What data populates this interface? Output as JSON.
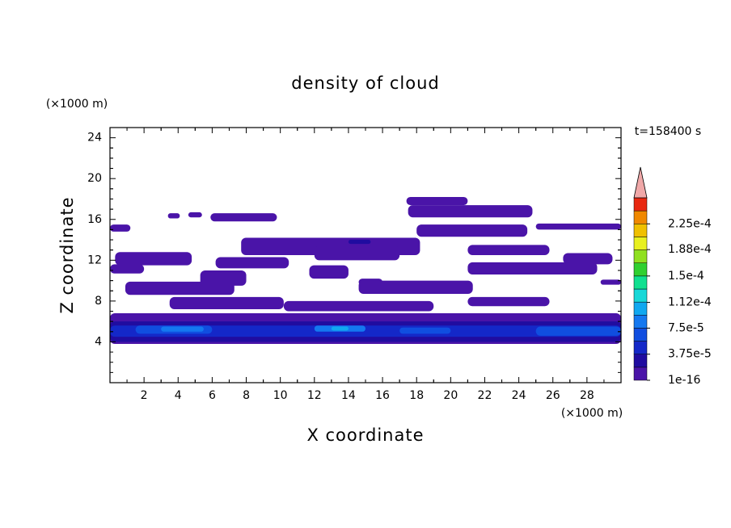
{
  "chart_data": {
    "type": "contour",
    "title": "density of cloud",
    "xlabel": "X coordinate",
    "ylabel": "Z coordinate",
    "xunit": "(×1000 m)",
    "yunit": "(×1000 m)",
    "annotation": "t=158400 s",
    "xlim": [
      0,
      30
    ],
    "ylim": [
      0,
      25
    ],
    "xticks": [
      2,
      4,
      6,
      8,
      10,
      12,
      14,
      16,
      18,
      20,
      22,
      24,
      26,
      28
    ],
    "yticks": [
      4,
      8,
      12,
      16,
      20,
      24
    ],
    "colorbar": {
      "colors": [
        "#4a14a8",
        "#200ca0",
        "#1428c8",
        "#104ee0",
        "#1478f0",
        "#10a8f0",
        "#18d8d8",
        "#10e090",
        "#30d030",
        "#90e020",
        "#e8f020",
        "#f0c000",
        "#f08800",
        "#e82810"
      ],
      "over_color": "#f0a8a8",
      "ticks": [
        1e-16,
        {
          "value": 3.75e-05,
          "label": "3.75e-5"
        },
        {
          "value": 7.5e-05,
          "label": "7.5e-5"
        },
        {
          "value": 0.000112,
          "label": "1.12e-4"
        },
        {
          "value": 0.00015,
          "label": "1.5e-4"
        },
        {
          "value": 0.000188,
          "label": "1.88e-4"
        },
        {
          "value": 0.000225,
          "label": "2.25e-4"
        }
      ]
    },
    "regions": [
      {
        "x": [
          0,
          30
        ],
        "z": [
          3.8,
          6.8
        ],
        "value": 5e-06
      },
      {
        "x": [
          0,
          1.2
        ],
        "z": [
          14.8,
          15.5
        ],
        "value": 5e-06
      },
      {
        "x": [
          0.3,
          4.8
        ],
        "z": [
          11.5,
          12.8
        ],
        "value": 5e-06
      },
      {
        "x": [
          0,
          2
        ],
        "z": [
          10.7,
          11.6
        ],
        "value": 5e-06
      },
      {
        "x": [
          5.9,
          9.8
        ],
        "z": [
          15.8,
          16.6
        ],
        "value": 5e-06
      },
      {
        "x": [
          3.4,
          4.1
        ],
        "z": [
          16.1,
          16.6
        ],
        "value": 5e-06
      },
      {
        "x": [
          4.6,
          5.4
        ],
        "z": [
          16.2,
          16.7
        ],
        "value": 5e-06
      },
      {
        "x": [
          17.4,
          21
        ],
        "z": [
          17.4,
          18.2
        ],
        "value": 5e-06
      },
      {
        "x": [
          17.5,
          24.8
        ],
        "z": [
          16.2,
          17.4
        ],
        "value": 5e-06
      },
      {
        "x": [
          18,
          24.5
        ],
        "z": [
          14.3,
          15.5
        ],
        "value": 5e-06
      },
      {
        "x": [
          25,
          30
        ],
        "z": [
          15,
          15.6
        ],
        "value": 5e-06
      },
      {
        "x": [
          7.7,
          18.2
        ],
        "z": [
          12.5,
          14.2
        ],
        "value": 5e-06
      },
      {
        "x": [
          12,
          17
        ],
        "z": [
          12,
          13.4
        ],
        "value": 5e-06
      },
      {
        "x": [
          6.2,
          10.5
        ],
        "z": [
          11.2,
          12.3
        ],
        "value": 5e-06
      },
      {
        "x": [
          5.3,
          8
        ],
        "z": [
          9.5,
          11
        ],
        "value": 5e-06
      },
      {
        "x": [
          11.7,
          14
        ],
        "z": [
          10.2,
          11.5
        ],
        "value": 5e-06
      },
      {
        "x": [
          14.6,
          16
        ],
        "z": [
          9.5,
          10.2
        ],
        "value": 5e-06
      },
      {
        "x": [
          21,
          28.6
        ],
        "z": [
          10.6,
          11.8
        ],
        "value": 5e-06
      },
      {
        "x": [
          26.6,
          29.5
        ],
        "z": [
          11.6,
          12.7
        ],
        "value": 5e-06
      },
      {
        "x": [
          21,
          25.8
        ],
        "z": [
          12.5,
          13.5
        ],
        "value": 5e-06
      },
      {
        "x": [
          0.9,
          7.3
        ],
        "z": [
          8.6,
          9.9
        ],
        "value": 5e-06
      },
      {
        "x": [
          14.6,
          21.3
        ],
        "z": [
          8.7,
          10
        ],
        "value": 5e-06
      },
      {
        "x": [
          21,
          25.8
        ],
        "z": [
          7.5,
          8.4
        ],
        "value": 5e-06
      },
      {
        "x": [
          3.5,
          10.2
        ],
        "z": [
          7.2,
          8.4
        ],
        "value": 5e-06
      },
      {
        "x": [
          10.2,
          19
        ],
        "z": [
          7,
          8
        ],
        "value": 5e-06
      },
      {
        "x": [
          28.8,
          30
        ],
        "z": [
          9.6,
          10.1
        ],
        "value": 5e-06
      },
      {
        "x": [
          14,
          15.3
        ],
        "z": [
          13.6,
          14
        ],
        "value": 2.5e-05
      },
      {
        "x": [
          0,
          30
        ],
        "z": [
          4,
          6
        ],
        "value": 2.5e-05
      },
      {
        "x": [
          0,
          30
        ],
        "z": [
          4.5,
          5.6
        ],
        "value": 4e-05
      },
      {
        "x": [
          1.5,
          6
        ],
        "z": [
          4.8,
          5.6
        ],
        "value": 6e-05
      },
      {
        "x": [
          3,
          5.5
        ],
        "z": [
          5,
          5.5
        ],
        "value": 9e-05
      },
      {
        "x": [
          12,
          15
        ],
        "z": [
          5,
          5.6
        ],
        "value": 9e-05
      },
      {
        "x": [
          13,
          14
        ],
        "z": [
          5.1,
          5.5
        ],
        "value": 0.00011
      },
      {
        "x": [
          17,
          20
        ],
        "z": [
          4.8,
          5.4
        ],
        "value": 6e-05
      },
      {
        "x": [
          25,
          30
        ],
        "z": [
          4.6,
          5.5
        ],
        "value": 6e-05
      }
    ]
  }
}
